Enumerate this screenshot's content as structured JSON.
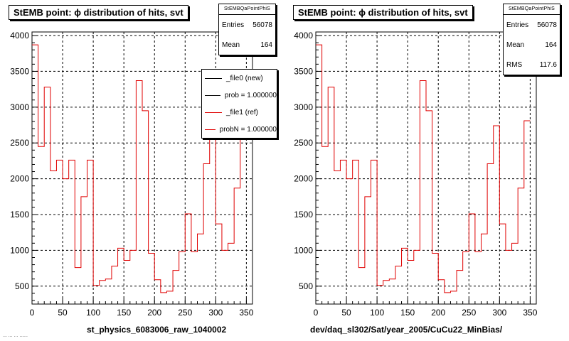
{
  "panels": [
    {
      "title": "StEMB point:  ϕ distribution of hits, svt",
      "xlabel": "st_physics_6083006_raw_1040002",
      "stats": {
        "name": "StEMBQaPointPhiS",
        "rows": [
          {
            "label": "Entries",
            "value": "56078"
          },
          {
            "label": "Mean",
            "value": "164"
          }
        ]
      },
      "legend": [
        {
          "label": "_file0 (new)",
          "color": "#000000"
        },
        {
          "label": "prob = 1.000000",
          "color": "#000000"
        },
        {
          "label": "_file1 (ref)",
          "color": "#e00000"
        },
        {
          "label": "probN = 1.000000",
          "color": "#e00000"
        }
      ]
    },
    {
      "title": "StEMB point:  ϕ distribution of hits, svt",
      "xlabel": "dev/daq_sl302/Sat/year_2005/CuCu22_MinBias/",
      "stats": {
        "name": "StEMBQaPointPhiS",
        "rows": [
          {
            "label": "Entries",
            "value": "56078"
          },
          {
            "label": "Mean",
            "value": "164"
          },
          {
            "label": "RMS",
            "value": "117.6"
          }
        ]
      },
      "legend": []
    }
  ],
  "footer": "... ... ... ......",
  "chart_data": [
    {
      "type": "histogram",
      "title": "StEMB point:  ϕ distribution of hits, svt",
      "xlabel": "st_physics_6083006_raw_1040002",
      "xlim": [
        0,
        360
      ],
      "ylim": [
        250,
        4050
      ],
      "xticks": [
        0,
        50,
        100,
        150,
        200,
        250,
        300,
        350
      ],
      "yticks": [
        500,
        1000,
        1500,
        2000,
        2500,
        3000,
        3500,
        4000
      ],
      "grid": true,
      "bin_edges_start": 0,
      "bin_width": 10,
      "series": [
        {
          "name": "_file1 (ref)",
          "color": "#e00000",
          "values": [
            3870,
            2450,
            3280,
            2110,
            2260,
            2000,
            2260,
            760,
            1750,
            2260,
            510,
            580,
            600,
            780,
            1030,
            860,
            1000,
            3370,
            2950,
            960,
            590,
            410,
            430,
            720,
            980,
            1510,
            980,
            1230,
            2210,
            2740,
            1370,
            1000,
            1100,
            1870,
            2810
          ]
        }
      ]
    },
    {
      "type": "histogram",
      "title": "StEMB point:  ϕ distribution of hits, svt",
      "xlabel": "dev/daq_sl302/Sat/year_2005/CuCu22_MinBias/",
      "xlim": [
        0,
        360
      ],
      "ylim": [
        250,
        4050
      ],
      "xticks": [
        0,
        50,
        100,
        150,
        200,
        250,
        300,
        350
      ],
      "yticks": [
        500,
        1000,
        1500,
        2000,
        2500,
        3000,
        3500,
        4000
      ],
      "grid": true,
      "bin_edges_start": 0,
      "bin_width": 10,
      "series": [
        {
          "name": "",
          "color": "#e00000",
          "values": [
            3870,
            2450,
            3280,
            2110,
            2260,
            2000,
            2260,
            760,
            1750,
            2260,
            510,
            580,
            600,
            780,
            1030,
            860,
            1000,
            3370,
            2950,
            960,
            590,
            410,
            430,
            720,
            980,
            1510,
            980,
            1230,
            2210,
            2740,
            1370,
            1000,
            1100,
            1870,
            2810
          ]
        }
      ]
    }
  ]
}
